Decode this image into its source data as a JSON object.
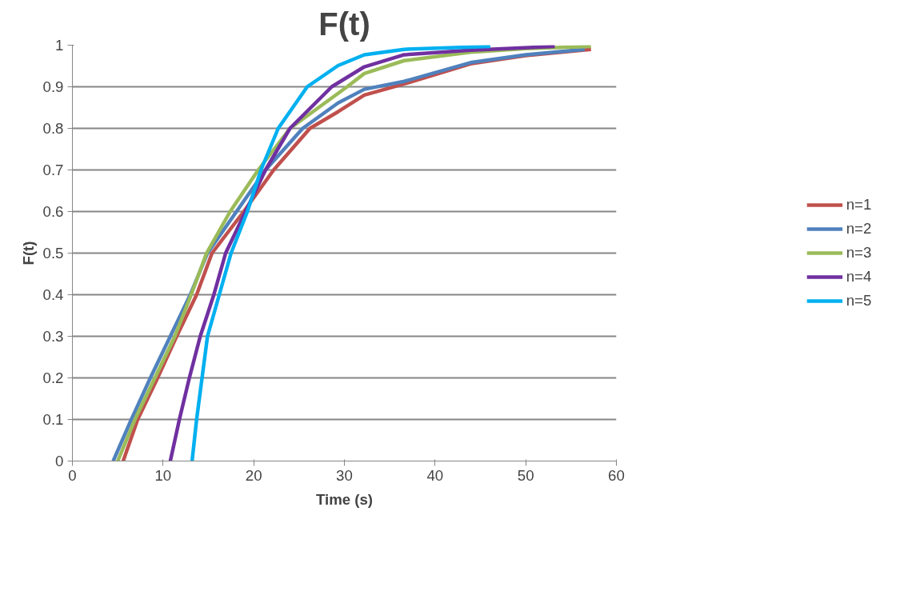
{
  "chart_data": {
    "type": "line",
    "title": "F(t)",
    "xlabel": "Time (s)",
    "ylabel": "F(t)",
    "xlim": [
      0,
      60
    ],
    "xticks": [
      0,
      10,
      20,
      30,
      40,
      50,
      60
    ],
    "ylim": [
      0,
      1
    ],
    "yticks": [
      0,
      0.1,
      0.2,
      0.3,
      0.4,
      0.5,
      0.6,
      0.7,
      0.8,
      0.9,
      1
    ],
    "grid": "y",
    "legend": "right",
    "marker": "none",
    "line_style": "solid",
    "series": [
      {
        "name": "n=1",
        "color": "#c0504d",
        "x": [
          5.6,
          7.2,
          9.4,
          11.5,
          13.7,
          15.4,
          18.9,
          22.2,
          26.2,
          29.3,
          32.2,
          36.6,
          43.9,
          50,
          57.2
        ],
        "values": [
          0,
          0.1,
          0.2,
          0.3,
          0.4,
          0.5,
          0.6,
          0.7,
          0.8,
          0.84,
          0.88,
          0.907,
          0.955,
          0.975,
          0.99
        ]
      },
      {
        "name": "n=2",
        "color": "#4f81bd",
        "x": [
          4.5,
          6.5,
          8.6,
          10.8,
          13.0,
          14.9,
          18.1,
          21.3,
          25.4,
          29.3,
          32.2,
          36.6,
          43.9,
          50,
          56.5
        ],
        "values": [
          0,
          0.1,
          0.2,
          0.3,
          0.4,
          0.5,
          0.6,
          0.7,
          0.8,
          0.861,
          0.894,
          0.913,
          0.958,
          0.977,
          0.99
        ]
      },
      {
        "name": "n=3",
        "color": "#9bbb59",
        "x": [
          5.0,
          6.9,
          9.1,
          11.3,
          13.1,
          14.8,
          17.4,
          20.5,
          24.0,
          30.3,
          32.2,
          36.6,
          43.9,
          50,
          57.2
        ],
        "values": [
          0,
          0.1,
          0.2,
          0.3,
          0.4,
          0.5,
          0.6,
          0.7,
          0.8,
          0.9,
          0.932,
          0.963,
          0.983,
          0.992,
          0.997
        ]
      },
      {
        "name": "n=4",
        "color": "#7030a0",
        "x": [
          10.8,
          11.8,
          12.9,
          14.1,
          15.6,
          16.9,
          19.1,
          21.3,
          24.0,
          28.6,
          32.2,
          36.6,
          43.9,
          53.2
        ],
        "values": [
          0,
          0.1,
          0.2,
          0.3,
          0.4,
          0.5,
          0.6,
          0.7,
          0.8,
          0.9,
          0.948,
          0.977,
          0.988,
          0.997
        ]
      },
      {
        "name": "n=5",
        "color": "#00b0f0",
        "x": [
          13.2,
          13.7,
          14.3,
          14.9,
          16.2,
          17.5,
          19.3,
          20.8,
          22.7,
          25.9,
          29.3,
          32.2,
          36.6,
          46.1
        ],
        "values": [
          0,
          0.1,
          0.2,
          0.3,
          0.4,
          0.5,
          0.6,
          0.7,
          0.8,
          0.9,
          0.951,
          0.977,
          0.99,
          0.997
        ]
      }
    ]
  }
}
